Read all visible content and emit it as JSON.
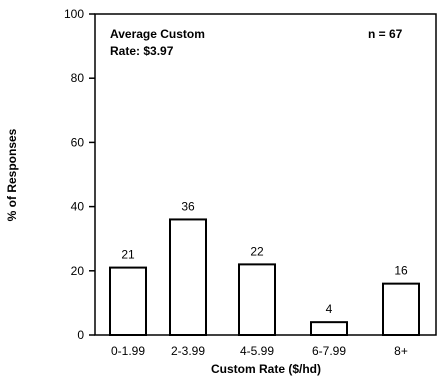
{
  "chart_data": {
    "type": "bar",
    "title": "",
    "xlabel": "Custom Rate ($/hd)",
    "ylabel": "% of Responses",
    "categories": [
      "0-1.99",
      "2-3.99",
      "4-5.99",
      "6-7.99",
      "8+"
    ],
    "values": [
      21,
      36,
      22,
      4,
      16
    ],
    "data_labels": [
      "21",
      "36",
      "22",
      "4",
      "16"
    ],
    "ylim": [
      0,
      100
    ],
    "yticks": [
      0,
      20,
      40,
      60,
      80,
      100
    ],
    "grid": false,
    "legend": "none",
    "annotations": {
      "average_line1": "Average Custom",
      "average_line2": "Rate: $3.97",
      "sample_size": "n = 67"
    },
    "colors": {
      "bar_fill": "#ffffff",
      "bar_stroke": "#000000",
      "axis": "#000000"
    }
  }
}
